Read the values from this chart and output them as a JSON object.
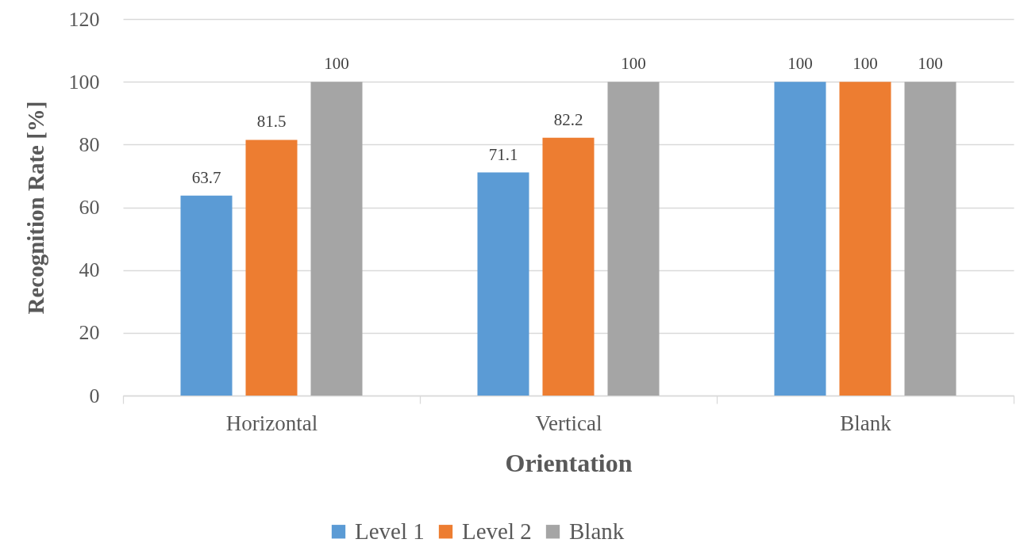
{
  "chart_data": {
    "type": "bar",
    "categories": [
      "Horizontal",
      "Vertical",
      "Blank"
    ],
    "series": [
      {
        "name": "Level 1",
        "color": "#5b9bd5",
        "values": [
          63.7,
          71.1,
          100
        ]
      },
      {
        "name": "Level 2",
        "color": "#ed7d31",
        "values": [
          81.5,
          82.2,
          100
        ]
      },
      {
        "name": "Blank",
        "color": "#a5a5a5",
        "values": [
          100,
          100,
          100
        ]
      }
    ],
    "xlabel": "Orientation",
    "ylabel": "Recognition Rate [%]",
    "ylim": [
      0,
      120
    ],
    "yticks": [
      0,
      20,
      40,
      60,
      80,
      100,
      120
    ],
    "grid": "y",
    "legend": "bottom",
    "data_labels": true
  }
}
